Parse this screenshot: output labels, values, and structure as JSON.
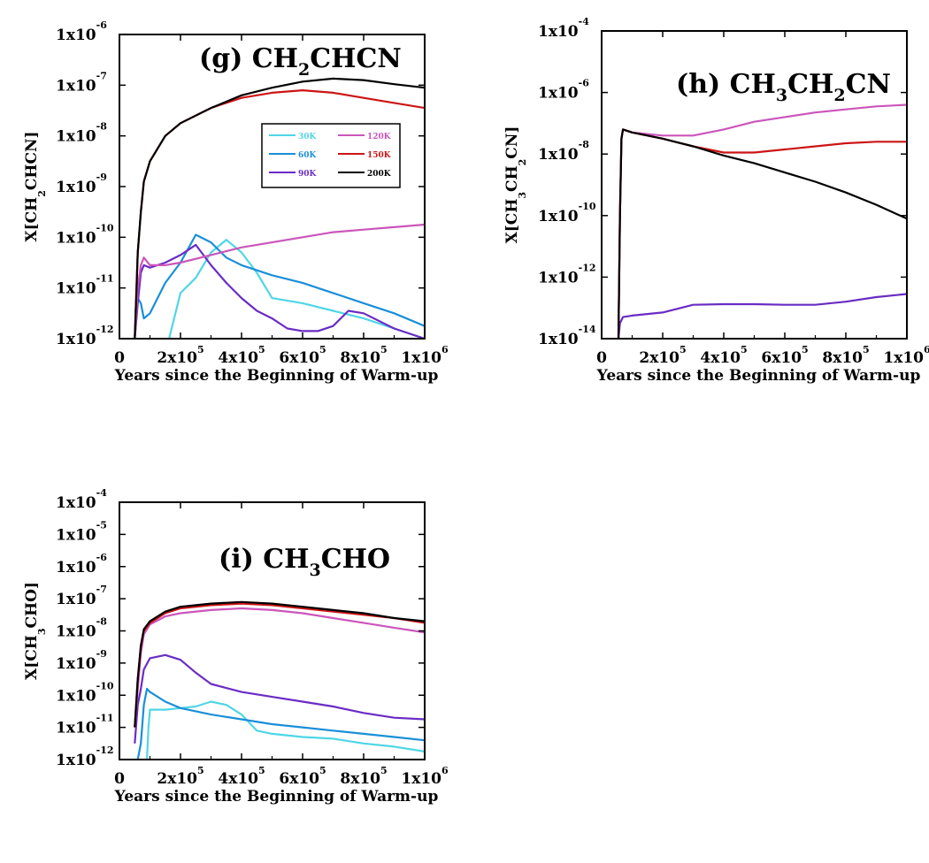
{
  "chart_data": [
    {
      "type": "line",
      "title": "(g) CH2CHCN",
      "title_parts": [
        "(g) CH",
        "2",
        "CHCN"
      ],
      "xlabel": "Years since the Beginning of Warm-up",
      "ylabel_parts": [
        "X[CH",
        "2",
        "CHCN]"
      ],
      "x_scale": "linear",
      "y_scale": "log",
      "xlim": [
        0,
        1000000
      ],
      "ylim": [
        1e-12,
        1e-06
      ],
      "x_ticks": [
        {
          "value": 0,
          "base": "0",
          "exp": ""
        },
        {
          "value": 200000,
          "base": "2x10",
          "exp": "5"
        },
        {
          "value": 400000,
          "base": "4x10",
          "exp": "5"
        },
        {
          "value": 600000,
          "base": "6x10",
          "exp": "5"
        },
        {
          "value": 800000,
          "base": "8x10",
          "exp": "5"
        },
        {
          "value": 1000000,
          "base": "1x10",
          "exp": "6"
        }
      ],
      "y_ticks": [
        {
          "value": -12,
          "base": "1x10",
          "exp": "-12"
        },
        {
          "value": -11,
          "base": "1x10",
          "exp": "-11"
        },
        {
          "value": -10,
          "base": "1x10",
          "exp": "-10"
        },
        {
          "value": -9,
          "base": "1x10",
          "exp": "-9"
        },
        {
          "value": -8,
          "base": "1x10",
          "exp": "-8"
        },
        {
          "value": -7,
          "base": "1x10",
          "exp": "-7"
        },
        {
          "value": -6,
          "base": "1x10",
          "exp": "-6"
        }
      ],
      "legend": {
        "placement": "upper-right inside",
        "entries": [
          {
            "label": "30K",
            "color": "#4fd6e6"
          },
          {
            "label": "120K",
            "color": "#cc55bb"
          },
          {
            "label": "60K",
            "color": "#1a8fd8"
          },
          {
            "label": "150K",
            "color": "#cc1515"
          },
          {
            "label": "90K",
            "color": "#6a2cc4"
          },
          {
            "label": "200K",
            "color": "#000000"
          }
        ]
      },
      "series": [
        {
          "name": "30K",
          "color": "#4fd6e6",
          "x": [
            50000,
            60000,
            70000,
            100000,
            150000,
            200000,
            250000,
            300000,
            350000,
            400000,
            450000,
            500000,
            600000,
            700000,
            800000,
            900000,
            1000000
          ],
          "log_y": [
            -12.0,
            -12.1,
            -12.3,
            -12.3,
            -12.3,
            -11.1,
            -10.8,
            -10.3,
            -10.05,
            -10.3,
            -10.7,
            -11.2,
            -11.3,
            -11.45,
            -11.6,
            -11.8,
            -12.0
          ]
        },
        {
          "name": "60K",
          "color": "#1a8fd8",
          "x": [
            50000,
            60000,
            70000,
            80000,
            100000,
            150000,
            200000,
            250000,
            300000,
            350000,
            400000,
            500000,
            600000,
            700000,
            800000,
            900000,
            1000000
          ],
          "log_y": [
            -12.0,
            -11.2,
            -11.3,
            -11.6,
            -11.5,
            -10.9,
            -10.5,
            -9.95,
            -10.1,
            -10.4,
            -10.55,
            -10.75,
            -10.9,
            -11.1,
            -11.3,
            -11.5,
            -11.75
          ]
        },
        {
          "name": "90K",
          "color": "#6a2cc4",
          "x": [
            50000,
            60000,
            70000,
            80000,
            100000,
            150000,
            200000,
            250000,
            300000,
            350000,
            400000,
            450000,
            500000,
            550000,
            600000,
            650000,
            700000,
            750000,
            800000,
            900000,
            1000000
          ],
          "log_y": [
            -12.0,
            -11.3,
            -10.7,
            -10.55,
            -10.6,
            -10.5,
            -10.35,
            -10.15,
            -10.55,
            -10.9,
            -11.2,
            -11.45,
            -11.6,
            -11.8,
            -11.85,
            -11.85,
            -11.75,
            -11.45,
            -11.5,
            -11.8,
            -12.0
          ]
        },
        {
          "name": "120K",
          "color": "#cc55bb",
          "x": [
            50000,
            60000,
            70000,
            80000,
            100000,
            150000,
            200000,
            300000,
            400000,
            500000,
            600000,
            700000,
            800000,
            900000,
            1000000
          ],
          "log_y": [
            -12.0,
            -11.0,
            -10.55,
            -10.4,
            -10.55,
            -10.55,
            -10.5,
            -10.35,
            -10.2,
            -10.1,
            -10.0,
            -9.9,
            -9.85,
            -9.8,
            -9.75
          ]
        },
        {
          "name": "150K",
          "color": "#cc1515",
          "x": [
            50000,
            60000,
            70000,
            80000,
            100000,
            150000,
            200000,
            300000,
            400000,
            500000,
            600000,
            700000,
            800000,
            900000,
            1000000
          ],
          "log_y": [
            -12.0,
            -10.3,
            -9.5,
            -8.9,
            -8.5,
            -8.0,
            -7.75,
            -7.45,
            -7.25,
            -7.15,
            -7.1,
            -7.15,
            -7.25,
            -7.35,
            -7.45
          ]
        },
        {
          "name": "200K",
          "color": "#000000",
          "x": [
            50000,
            60000,
            70000,
            80000,
            100000,
            150000,
            200000,
            300000,
            400000,
            500000,
            600000,
            700000,
            800000,
            900000,
            1000000
          ],
          "log_y": [
            -12.0,
            -10.3,
            -9.5,
            -8.9,
            -8.5,
            -8.0,
            -7.75,
            -7.45,
            -7.2,
            -7.05,
            -6.93,
            -6.87,
            -6.9,
            -6.98,
            -7.05
          ]
        }
      ]
    },
    {
      "type": "line",
      "title": "(h) CH3CH2CN",
      "title_parts": [
        "(h) CH",
        "3",
        "CH",
        "2",
        "CN"
      ],
      "xlabel": "Years since the Beginning of Warm-up",
      "ylabel_parts": [
        "X[CH",
        "3",
        "CH",
        "2",
        "CN]"
      ],
      "x_scale": "linear",
      "y_scale": "log",
      "xlim": [
        0,
        1000000
      ],
      "ylim": [
        1e-14,
        0.0001
      ],
      "x_ticks": [
        {
          "value": 0,
          "base": "0",
          "exp": ""
        },
        {
          "value": 200000,
          "base": "2x10",
          "exp": "5"
        },
        {
          "value": 400000,
          "base": "4x10",
          "exp": "5"
        },
        {
          "value": 600000,
          "base": "6x10",
          "exp": "5"
        },
        {
          "value": 800000,
          "base": "8x10",
          "exp": "5"
        },
        {
          "value": 1000000,
          "base": "1x10",
          "exp": "6"
        }
      ],
      "y_ticks": [
        {
          "value": -14,
          "base": "1x10",
          "exp": "-14"
        },
        {
          "value": -12,
          "base": "1x10",
          "exp": "-12"
        },
        {
          "value": -10,
          "base": "1x10",
          "exp": "-10"
        },
        {
          "value": -8,
          "base": "1x10",
          "exp": "-8"
        },
        {
          "value": -6,
          "base": "1x10",
          "exp": "-6"
        },
        {
          "value": -4,
          "base": "1x10",
          "exp": "-4"
        }
      ],
      "series": [
        {
          "name": "90K",
          "color": "#6a2cc4",
          "x": [
            55000,
            60000,
            70000,
            100000,
            200000,
            300000,
            400000,
            500000,
            600000,
            700000,
            800000,
            900000,
            1000000
          ],
          "log_y": [
            -14.0,
            -13.5,
            -13.3,
            -13.25,
            -13.15,
            -12.9,
            -12.88,
            -12.88,
            -12.9,
            -12.9,
            -12.8,
            -12.65,
            -12.55
          ]
        },
        {
          "name": "120K",
          "color": "#cc55bb",
          "x": [
            55000,
            60000,
            65000,
            70000,
            100000,
            200000,
            300000,
            400000,
            500000,
            600000,
            700000,
            800000,
            900000,
            1000000
          ],
          "log_y": [
            -14.0,
            -10.0,
            -7.5,
            -7.2,
            -7.3,
            -7.4,
            -7.4,
            -7.2,
            -6.95,
            -6.8,
            -6.65,
            -6.55,
            -6.45,
            -6.4
          ]
        },
        {
          "name": "150K",
          "color": "#cc1515",
          "x": [
            55000,
            60000,
            65000,
            70000,
            100000,
            200000,
            300000,
            400000,
            500000,
            600000,
            700000,
            800000,
            900000,
            1000000
          ],
          "log_y": [
            -14.0,
            -10.0,
            -7.5,
            -7.2,
            -7.3,
            -7.5,
            -7.75,
            -7.95,
            -7.95,
            -7.85,
            -7.75,
            -7.65,
            -7.6,
            -7.6
          ]
        },
        {
          "name": "200K",
          "color": "#000000",
          "x": [
            55000,
            60000,
            65000,
            70000,
            100000,
            200000,
            300000,
            400000,
            500000,
            600000,
            700000,
            800000,
            900000,
            1000000
          ],
          "log_y": [
            -14.0,
            -10.0,
            -7.5,
            -7.2,
            -7.3,
            -7.5,
            -7.75,
            -8.05,
            -8.3,
            -8.6,
            -8.9,
            -9.25,
            -9.65,
            -10.1
          ]
        }
      ]
    },
    {
      "type": "line",
      "title": "(i) CH3CHO",
      "title_parts": [
        "(i) CH",
        "3",
        "CHO"
      ],
      "xlabel": "Years since the Beginning of Warm-up",
      "ylabel_parts": [
        "X[CH",
        "3",
        "CHO]"
      ],
      "x_scale": "linear",
      "y_scale": "log",
      "xlim": [
        0,
        1000000
      ],
      "ylim": [
        1e-12,
        0.0001
      ],
      "x_ticks": [
        {
          "value": 0,
          "base": "0",
          "exp": ""
        },
        {
          "value": 200000,
          "base": "2x10",
          "exp": "5"
        },
        {
          "value": 400000,
          "base": "4x10",
          "exp": "5"
        },
        {
          "value": 600000,
          "base": "6x10",
          "exp": "5"
        },
        {
          "value": 800000,
          "base": "8x10",
          "exp": "5"
        },
        {
          "value": 1000000,
          "base": "1x10",
          "exp": "6"
        }
      ],
      "y_ticks": [
        {
          "value": -12,
          "base": "1x10",
          "exp": "-12"
        },
        {
          "value": -11,
          "base": "1x10",
          "exp": "-11"
        },
        {
          "value": -10,
          "base": "1x10",
          "exp": "-10"
        },
        {
          "value": -9,
          "base": "1x10",
          "exp": "-9"
        },
        {
          "value": -8,
          "base": "1x10",
          "exp": "-8"
        },
        {
          "value": -7,
          "base": "1x10",
          "exp": "-7"
        },
        {
          "value": -6,
          "base": "1x10",
          "exp": "-6"
        },
        {
          "value": -5,
          "base": "1x10",
          "exp": "-5"
        },
        {
          "value": -4,
          "base": "1x10",
          "exp": "-4"
        }
      ],
      "series": [
        {
          "name": "30K",
          "color": "#4fd6e6",
          "x": [
            90000,
            95000,
            100000,
            150000,
            200000,
            250000,
            300000,
            350000,
            400000,
            450000,
            500000,
            600000,
            700000,
            800000,
            900000,
            1000000
          ],
          "log_y": [
            -12.0,
            -11.0,
            -10.45,
            -10.45,
            -10.4,
            -10.35,
            -10.2,
            -10.3,
            -10.6,
            -11.1,
            -11.2,
            -11.3,
            -11.35,
            -11.5,
            -11.6,
            -11.75
          ]
        },
        {
          "name": "60K",
          "color": "#1a8fd8",
          "x": [
            60000,
            70000,
            80000,
            90000,
            100000,
            150000,
            200000,
            300000,
            400000,
            500000,
            600000,
            700000,
            800000,
            900000,
            1000000
          ],
          "log_y": [
            -12.0,
            -11.5,
            -10.3,
            -9.8,
            -9.9,
            -10.2,
            -10.4,
            -10.6,
            -10.75,
            -10.9,
            -11.0,
            -11.1,
            -11.2,
            -11.3,
            -11.4
          ]
        },
        {
          "name": "90K",
          "color": "#6a2cc4",
          "x": [
            50000,
            60000,
            70000,
            80000,
            100000,
            150000,
            200000,
            250000,
            300000,
            400000,
            500000,
            600000,
            700000,
            800000,
            900000,
            1000000
          ],
          "log_y": [
            -11.5,
            -10.3,
            -9.8,
            -9.2,
            -8.85,
            -8.75,
            -8.9,
            -9.3,
            -9.65,
            -9.9,
            -10.05,
            -10.2,
            -10.35,
            -10.55,
            -10.7,
            -10.75
          ]
        },
        {
          "name": "120K",
          "color": "#cc55bb",
          "x": [
            50000,
            60000,
            70000,
            80000,
            100000,
            150000,
            200000,
            300000,
            400000,
            500000,
            600000,
            700000,
            800000,
            900000,
            1000000
          ],
          "log_y": [
            -11.0,
            -9.8,
            -8.7,
            -8.1,
            -7.8,
            -7.55,
            -7.45,
            -7.35,
            -7.3,
            -7.35,
            -7.45,
            -7.6,
            -7.75,
            -7.9,
            -8.05
          ]
        },
        {
          "name": "150K",
          "color": "#cc1515",
          "x": [
            50000,
            60000,
            70000,
            80000,
            100000,
            150000,
            200000,
            300000,
            400000,
            500000,
            600000,
            700000,
            800000,
            900000,
            1000000
          ],
          "log_y": [
            -11.0,
            -9.5,
            -8.5,
            -8.0,
            -7.75,
            -7.45,
            -7.3,
            -7.2,
            -7.15,
            -7.2,
            -7.3,
            -7.4,
            -7.5,
            -7.6,
            -7.75
          ]
        },
        {
          "name": "200K",
          "color": "#000000",
          "x": [
            50000,
            60000,
            70000,
            80000,
            100000,
            150000,
            200000,
            300000,
            400000,
            500000,
            600000,
            700000,
            800000,
            900000,
            1000000
          ],
          "log_y": [
            -11.0,
            -9.5,
            -8.45,
            -7.95,
            -7.7,
            -7.4,
            -7.25,
            -7.15,
            -7.1,
            -7.15,
            -7.25,
            -7.35,
            -7.45,
            -7.6,
            -7.7
          ]
        }
      ]
    }
  ]
}
